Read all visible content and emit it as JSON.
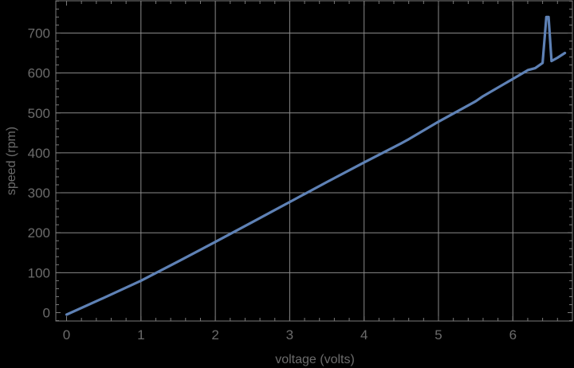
{
  "chart_data": {
    "type": "line",
    "title": "",
    "xlabel": "voltage (volts)",
    "ylabel": "speed (rpm)",
    "xlim": [
      -0.14,
      6.78
    ],
    "ylim": [
      -22,
      780
    ],
    "xticks": [
      0,
      1,
      2,
      3,
      4,
      5,
      6
    ],
    "yticks": [
      0,
      100,
      200,
      300,
      400,
      500,
      600,
      700
    ],
    "grid": true,
    "legend": null,
    "line_color": "#5e81b5",
    "series": [
      {
        "name": "speed",
        "x": [
          0,
          0.5,
          1.0,
          1.5,
          2.0,
          2.5,
          3.0,
          3.5,
          4.0,
          4.5,
          4.6,
          5.0,
          5.5,
          5.6,
          6.0,
          6.2,
          6.3,
          6.4,
          6.45,
          6.48,
          6.52,
          6.6,
          6.7
        ],
        "y": [
          -5,
          37,
          80,
          128,
          177,
          227,
          277,
          327,
          376,
          424,
          434,
          478,
          529,
          542,
          585,
          607,
          612,
          625,
          740,
          740,
          630,
          638,
          650
        ]
      }
    ]
  },
  "axes": {
    "x_tick_labels": [
      "0",
      "1",
      "2",
      "3",
      "4",
      "5",
      "6"
    ],
    "y_tick_labels": [
      "0",
      "100",
      "200",
      "300",
      "400",
      "500",
      "600",
      "700"
    ],
    "x_title": "voltage (volts)",
    "y_title": "speed (rpm)"
  }
}
